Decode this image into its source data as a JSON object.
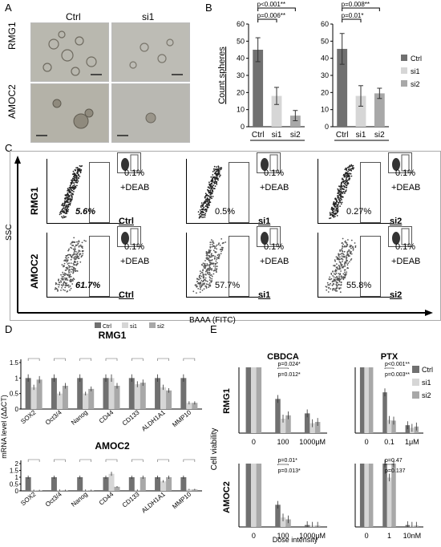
{
  "panels": {
    "A": "A",
    "B": "B",
    "C": "C",
    "D": "D",
    "E": "E"
  },
  "panelA": {
    "cols": [
      "Ctrl",
      "si1"
    ],
    "rows": [
      "RMG1",
      "AMOC2"
    ]
  },
  "panelC": {
    "ylabel": "SSC",
    "xlabel": "BAAA (FITC)",
    "rows": [
      "RMG1",
      "AMOC2"
    ],
    "deab": "+DEAB",
    "plots": [
      {
        "pct": "5.6%",
        "deab": "0.1%",
        "label": "Ctrl",
        "bold": true
      },
      {
        "pct": "0.5%",
        "deab": "0.1%",
        "label": "si1",
        "bold": false
      },
      {
        "pct": "0.27%",
        "deab": "0.1%",
        "label": "si2",
        "bold": false
      },
      {
        "pct": "61.7%",
        "deab": "0.1%",
        "label": "Ctrl",
        "bold": true
      },
      {
        "pct": "57.7%",
        "deab": "0.1%",
        "label": "si1",
        "bold": false
      },
      {
        "pct": "55.8%",
        "deab": "0.1%",
        "label": "si2",
        "bold": false
      }
    ]
  },
  "colors": {
    "ctrl": "#707070",
    "si1": "#d6d6d6",
    "si2": "#a8a8a8"
  },
  "chart_data": [
    {
      "id": "B",
      "type": "bar",
      "ylabel": "Count spheres",
      "ylim": [
        0,
        60
      ],
      "yticks": [
        0,
        10,
        20,
        30,
        40,
        50,
        60
      ],
      "groups": [
        {
          "name": "RMG1",
          "categories": [
            "Ctrl",
            "si1",
            "si2"
          ],
          "values": [
            45,
            18,
            6.5
          ],
          "errors": [
            7,
            5,
            3
          ],
          "pvals": [
            {
              "text": "p=0.006**"
            },
            {
              "text": "p<0.001**"
            }
          ]
        },
        {
          "name": "AMOC2",
          "categories": [
            "Ctrl",
            "si1",
            "si2"
          ],
          "values": [
            45.5,
            18,
            19.5
          ],
          "errors": [
            9,
            6,
            3
          ],
          "pvals": [
            {
              "text": "p=0.01*"
            },
            {
              "text": "p=0.008**"
            }
          ]
        }
      ],
      "legend": [
        "Ctrl",
        "si1",
        "si2"
      ],
      "legend_position": "right"
    },
    {
      "id": "D",
      "type": "bar",
      "ylabel": "mRNA level (ΔΔCT)",
      "legend": [
        "Ctrl",
        "si1",
        "si2"
      ],
      "legend_position": "top",
      "categories": [
        "SOX2",
        "Oct3/4",
        "Nanog",
        "CD44",
        "CD133",
        "ALDH1A1",
        "MMP10"
      ],
      "subplots": [
        {
          "title": "RMG1",
          "ylim": [
            0,
            1.5
          ],
          "yticks": [
            0,
            0.5,
            1,
            1.5
          ],
          "series": [
            {
              "name": "Ctrl",
              "values": [
                1,
                1,
                1,
                1,
                1,
                1,
                1
              ]
            },
            {
              "name": "si1",
              "values": [
                0.7,
                0.5,
                0.5,
                1,
                0.8,
                0.7,
                0.2
              ]
            },
            {
              "name": "si2",
              "values": [
                0.95,
                0.75,
                0.65,
                0.75,
                0.85,
                0.6,
                0.2
              ]
            }
          ]
        },
        {
          "title": "AMOC2",
          "ylim": [
            0,
            2
          ],
          "yticks": [
            0,
            0.5,
            1,
            1.5,
            2
          ],
          "series": [
            {
              "name": "Ctrl",
              "values": [
                1,
                1,
                1,
                1,
                1,
                1,
                1
              ]
            },
            {
              "name": "si1",
              "values": [
                0.04,
                0.05,
                0.05,
                1.25,
                0.05,
                0.7,
                0.1
              ]
            },
            {
              "name": "si2",
              "values": [
                0.03,
                0.04,
                0.04,
                0.3,
                1,
                1,
                0.1
              ]
            }
          ]
        }
      ]
    },
    {
      "id": "E",
      "type": "bar",
      "ylabel": "Cell viability",
      "xlabel": "Dose intensity",
      "legend": [
        "Ctrl",
        "si1",
        "si2"
      ],
      "legend_position": "right",
      "subplots": [
        {
          "title": "CBDCA",
          "row": "RMG1",
          "doses": [
            "0",
            "100",
            "1000"
          ],
          "unit": "μM",
          "ylim": [
            0,
            1
          ],
          "series": [
            {
              "name": "Ctrl",
              "values": [
                1,
                0.52,
                0.3
              ]
            },
            {
              "name": "si1",
              "values": [
                1,
                0.22,
                0.15
              ]
            },
            {
              "name": "si2",
              "values": [
                1,
                0.27,
                0.17
              ]
            }
          ],
          "pvals": [
            "p=0.024*",
            "p=0.012*"
          ]
        },
        {
          "title": "PTX",
          "row": "RMG1",
          "doses": [
            "0",
            "0.1",
            "1"
          ],
          "unit": "μM",
          "ylim": [
            0,
            1
          ],
          "series": [
            {
              "name": "Ctrl",
              "values": [
                1,
                0.62,
                0.12
              ]
            },
            {
              "name": "si1",
              "values": [
                1,
                0.2,
                0.08
              ]
            },
            {
              "name": "si2",
              "values": [
                1,
                0.19,
                0.1
              ]
            }
          ],
          "pvals": [
            "p<0.001**",
            "p=0.003**"
          ]
        },
        {
          "title": "",
          "row": "AMOC2",
          "doses": [
            "0",
            "100",
            "1000"
          ],
          "unit": "μM",
          "ylim": [
            0,
            1
          ],
          "series": [
            {
              "name": "Ctrl",
              "values": [
                1,
                0.35,
                0.03
              ]
            },
            {
              "name": "si1",
              "values": [
                1,
                0.15,
                0.02
              ]
            },
            {
              "name": "si2",
              "values": [
                1,
                0.12,
                0.02
              ]
            }
          ],
          "pvals": [
            "p=0.01*",
            "p=0.013*"
          ]
        },
        {
          "title": "",
          "row": "AMOC2",
          "doses": [
            "0",
            "1",
            "10"
          ],
          "unit": "nM",
          "ylim": [
            0,
            1
          ],
          "series": [
            {
              "name": "Ctrl",
              "values": [
                1,
                1,
                0.03
              ]
            },
            {
              "name": "si1",
              "values": [
                1,
                0.78,
                0.02
              ]
            },
            {
              "name": "si2",
              "values": [
                1,
                1,
                0.02
              ]
            }
          ],
          "pvals": [
            "p=0.47",
            "p=0.137"
          ]
        }
      ]
    }
  ]
}
